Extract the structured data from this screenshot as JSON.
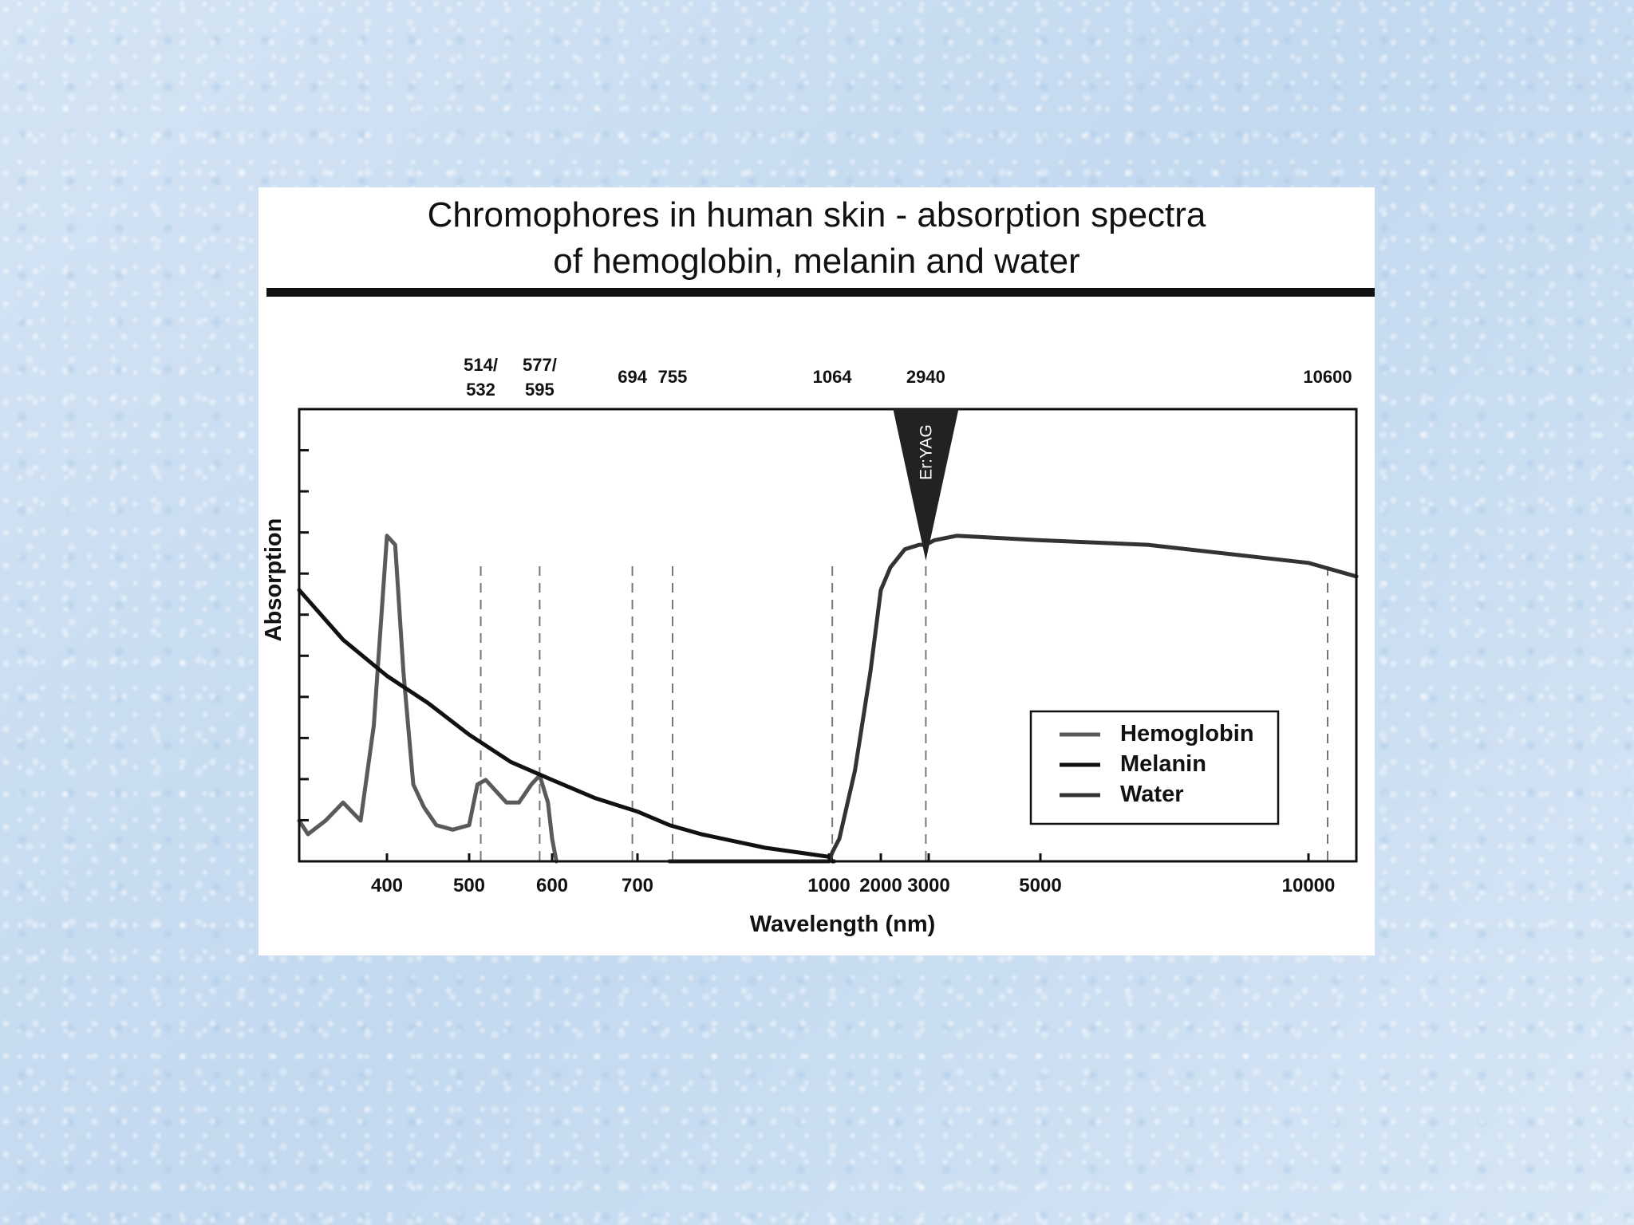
{
  "figure": {
    "title_line1": "Chromophores in human skin - absorption spectra",
    "title_line2": "of hemoglobin, melanin and water"
  },
  "chart_data": {
    "type": "line",
    "title": "Chromophores in human skin - absorption spectra of hemoglobin, melanin and water",
    "xlabel": "Wavelength (nm)",
    "ylabel": "Absorption",
    "x_scale": "piecewise (non-uniform wavelength axis)",
    "x_tick_labels": [
      "400",
      "500",
      "600",
      "700",
      "1000",
      "2000",
      "3000",
      "5000",
      "10000"
    ],
    "x_ticks": [
      400,
      500,
      600,
      700,
      1000,
      2000,
      3000,
      5000,
      10000
    ],
    "y_tick_count": 11,
    "grid": false,
    "legend_position": "bottom-right",
    "laser_wavelengths": [
      {
        "label_line1": "514/",
        "label_line2": "532",
        "x": 514
      },
      {
        "label_line1": "577/",
        "label_line2": "595",
        "x": 585
      },
      {
        "label_line1": "694",
        "label_line2": "",
        "x": 694
      },
      {
        "label_line1": "755",
        "label_line2": "",
        "x": 755
      },
      {
        "label_line1": "1064",
        "label_line2": "",
        "x": 1064
      },
      {
        "label_line1": "2940",
        "label_line2": "",
        "x": 2940
      },
      {
        "label_line1": "10600",
        "label_line2": "",
        "x": 10600
      }
    ],
    "marker": {
      "label": "Er:YAG",
      "x": 2940
    },
    "series": [
      {
        "name": "Hemoglobin",
        "color": "#5a5a5a",
        "x": [
          300,
          310,
          330,
          350,
          370,
          385,
          400,
          410,
          420,
          432,
          445,
          460,
          480,
          500,
          510,
          520,
          530,
          545,
          560,
          575,
          585,
          595,
          600,
          605
        ],
        "y": [
          0.09,
          0.06,
          0.09,
          0.13,
          0.09,
          0.3,
          0.72,
          0.7,
          0.42,
          0.17,
          0.12,
          0.08,
          0.07,
          0.08,
          0.17,
          0.18,
          0.16,
          0.13,
          0.13,
          0.17,
          0.19,
          0.13,
          0.05,
          0.0
        ]
      },
      {
        "name": "Melanin",
        "color": "#111111",
        "x": [
          300,
          350,
          400,
          450,
          500,
          550,
          600,
          650,
          700,
          750,
          800,
          900,
          1000,
          1064,
          1100
        ],
        "y": [
          0.6,
          0.49,
          0.41,
          0.35,
          0.28,
          0.22,
          0.18,
          0.14,
          0.11,
          0.08,
          0.06,
          0.03,
          0.01,
          0.0,
          0.0
        ]
      },
      {
        "name": "Water",
        "color": "#333333",
        "x": [
          750,
          900,
          1000,
          1064,
          1200,
          1500,
          1800,
          2000,
          2200,
          2500,
          2800,
          2940,
          3100,
          3500,
          5000,
          7000,
          10000,
          11500
        ],
        "y": [
          0.0,
          0.0,
          0.0,
          0.02,
          0.05,
          0.2,
          0.42,
          0.6,
          0.65,
          0.69,
          0.7,
          0.7,
          0.71,
          0.72,
          0.71,
          0.7,
          0.66,
          0.63
        ]
      }
    ]
  }
}
